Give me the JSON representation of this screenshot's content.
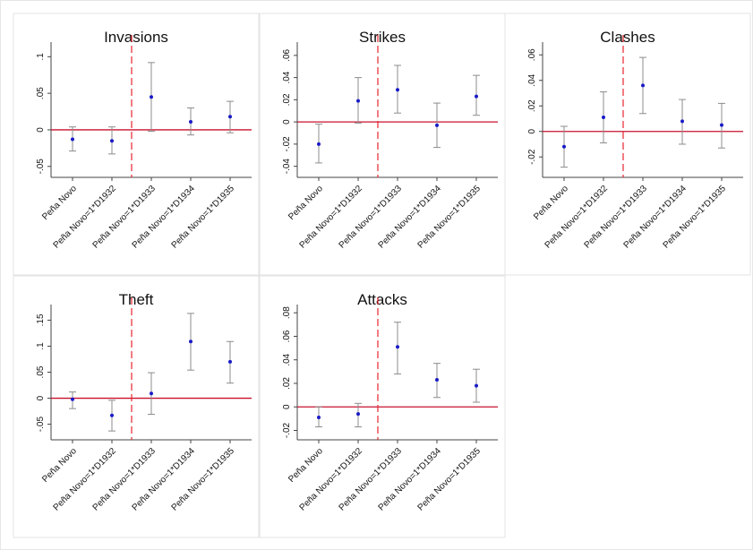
{
  "chart_data": [
    {
      "type": "coefplot",
      "title": "Invasions",
      "categories": [
        "Peña Novo",
        "Peña Novo=1*D1932",
        "Peña Novo=1*D1933",
        "Peña Novo=1*D1934",
        "Peña Novo=1*D1935"
      ],
      "values": [
        -0.013,
        -0.015,
        0.045,
        0.011,
        0.018
      ],
      "lower": [
        -0.029,
        -0.033,
        -0.002,
        -0.007,
        -0.004
      ],
      "upper": [
        0.004,
        0.004,
        0.092,
        0.03,
        0.039
      ],
      "ylim": [
        -0.065,
        0.12
      ],
      "yticks": [
        {
          "value": -0.05,
          "label": "-.05"
        },
        0,
        {
          "value": 0.05,
          "label": ".05"
        },
        {
          "value": 0.1,
          "label": ".1"
        }
      ],
      "color": "#1a1ac8",
      "ci_color": "#8c8c8c"
    },
    {
      "type": "coefplot",
      "title": "Strikes",
      "categories": [
        "Peña Novo",
        "Peña Novo=1*D1932",
        "Peña Novo=1*D1933",
        "Peña Novo=1*D1934",
        "Peña Novo=1*D1935"
      ],
      "values": [
        -0.02,
        0.019,
        0.029,
        -0.003,
        0.023
      ],
      "lower": [
        -0.037,
        -0.001,
        0.008,
        -0.023,
        0.006
      ],
      "upper": [
        -0.002,
        0.04,
        0.051,
        0.017,
        0.042
      ],
      "ylim": [
        -0.05,
        0.072
      ],
      "yticks": [
        {
          "value": -0.04,
          "label": "-.04"
        },
        {
          "value": -0.02,
          "label": "-.02"
        },
        0,
        {
          "value": 0.02,
          "label": ".02"
        },
        {
          "value": 0.04,
          "label": ".04"
        },
        {
          "value": 0.06,
          "label": ".06"
        }
      ],
      "color": "#1a1ac8",
      "ci_color": "#8c8c8c"
    },
    {
      "type": "coefplot",
      "title": "Clashes",
      "categories": [
        "Peña Novo",
        "Peña Novo=1*D1932",
        "Peña Novo=1*D1933",
        "Peña Novo=1*D1934",
        "Peña Novo=1*D1935"
      ],
      "values": [
        -0.012,
        0.011,
        0.036,
        0.008,
        0.005
      ],
      "lower": [
        -0.028,
        -0.009,
        0.014,
        -0.01,
        -0.013
      ],
      "upper": [
        0.004,
        0.031,
        0.058,
        0.025,
        0.022
      ],
      "ylim": [
        -0.036,
        0.07
      ],
      "yticks": [
        {
          "value": -0.02,
          "label": "-.02"
        },
        0,
        {
          "value": 0.02,
          "label": ".02"
        },
        {
          "value": 0.04,
          "label": ".04"
        },
        {
          "value": 0.06,
          "label": ".06"
        }
      ],
      "color": "#1a1ac8",
      "ci_color": "#8c8c8c"
    },
    {
      "type": "coefplot",
      "title": "Theft",
      "categories": [
        "Peña Novo",
        "Peña Novo=1*D1932",
        "Peña Novo=1*D1933",
        "Peña Novo=1*D1934",
        "Peña Novo=1*D1935"
      ],
      "values": [
        -0.002,
        -0.033,
        0.009,
        0.109,
        0.07
      ],
      "lower": [
        -0.02,
        -0.063,
        -0.031,
        0.054,
        0.029
      ],
      "upper": [
        0.012,
        -0.004,
        0.049,
        0.163,
        0.109
      ],
      "ylim": [
        -0.08,
        0.18
      ],
      "yticks": [
        {
          "value": -0.05,
          "label": "-.05"
        },
        0,
        {
          "value": 0.05,
          "label": ".05"
        },
        {
          "value": 0.1,
          "label": ".1"
        },
        {
          "value": 0.15,
          "label": ".15"
        }
      ],
      "color": "#1a1ac8",
      "ci_color": "#8c8c8c"
    },
    {
      "type": "coefplot",
      "title": "Attacks",
      "categories": [
        "Peña Novo",
        "Peña Novo=1*D1932",
        "Peña Novo=1*D1933",
        "Peña Novo=1*D1934",
        "Peña Novo=1*D1935"
      ],
      "values": [
        -0.009,
        -0.006,
        0.051,
        0.023,
        0.018
      ],
      "lower": [
        -0.017,
        -0.017,
        0.028,
        0.008,
        0.004
      ],
      "upper": [
        0.0,
        0.003,
        0.072,
        0.037,
        0.032
      ],
      "ylim": [
        -0.028,
        0.087
      ],
      "yticks": [
        {
          "value": -0.02,
          "label": "-.02"
        },
        0,
        {
          "value": 0.02,
          "label": ".02"
        },
        {
          "value": 0.04,
          "label": ".04"
        },
        {
          "value": 0.06,
          "label": ".06"
        },
        {
          "value": 0.08,
          "label": ".08"
        }
      ],
      "color": "#1a1ac8",
      "ci_color": "#8c8c8c"
    }
  ]
}
